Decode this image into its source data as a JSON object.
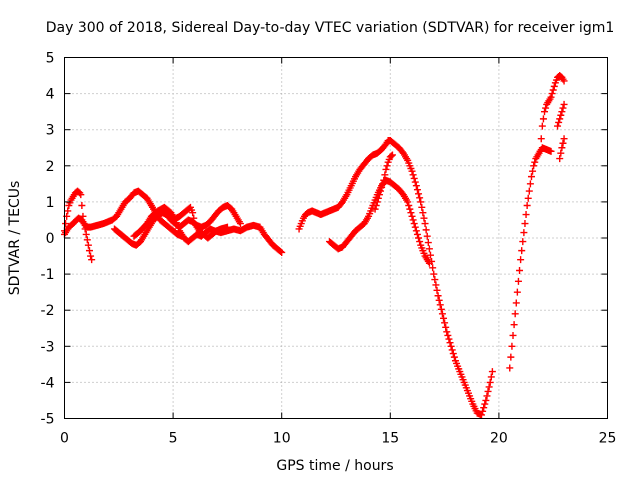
{
  "chart_data": {
    "type": "scatter",
    "title": "Day 300 of 2018, Sidereal Day-to-day VTEC variation (SDTVAR) for receiver igm1",
    "xlabel": "GPS time / hours",
    "ylabel": "SDTVAR / TECUs",
    "xlim": [
      0,
      25
    ],
    "ylim": [
      -5,
      5
    ],
    "xticks": [
      0,
      5,
      10,
      15,
      20,
      25
    ],
    "yticks": [
      -5,
      -4,
      -3,
      -2,
      -1,
      0,
      1,
      2,
      3,
      4,
      5
    ],
    "grid": true,
    "legend": "none",
    "marker": "plus",
    "color": "#ff0000",
    "series": [
      {
        "points": [
          [
            0.0,
            0.2
          ],
          [
            0.1,
            0.6
          ],
          [
            0.2,
            0.9
          ],
          [
            0.3,
            1.05
          ],
          [
            0.4,
            1.15
          ],
          [
            0.5,
            1.25
          ],
          [
            0.6,
            1.3
          ],
          [
            0.7,
            1.25
          ],
          [
            0.75,
            1.2
          ],
          [
            0.8,
            0.9
          ],
          [
            0.85,
            0.6
          ],
          [
            0.9,
            0.4
          ],
          [
            1.0,
            0.1
          ],
          [
            1.1,
            -0.2
          ],
          [
            1.2,
            -0.5
          ],
          [
            1.25,
            -0.6
          ]
        ]
      },
      {
        "points": [
          [
            0.0,
            0.1
          ],
          [
            0.2,
            0.3
          ],
          [
            0.4,
            0.4
          ],
          [
            0.55,
            0.5
          ],
          [
            0.65,
            0.55
          ],
          [
            0.8,
            0.5
          ],
          [
            1.0,
            0.3
          ],
          [
            1.2,
            0.3
          ],
          [
            1.5,
            0.35
          ],
          [
            1.8,
            0.4
          ],
          [
            2.0,
            0.45
          ],
          [
            2.2,
            0.5
          ],
          [
            2.4,
            0.6
          ],
          [
            2.6,
            0.8
          ],
          [
            2.8,
            1.0
          ],
          [
            3.0,
            1.1
          ],
          [
            3.2,
            1.25
          ],
          [
            3.4,
            1.3
          ],
          [
            3.6,
            1.2
          ],
          [
            3.8,
            1.1
          ],
          [
            4.0,
            0.9
          ],
          [
            4.2,
            0.7
          ],
          [
            4.4,
            0.5
          ],
          [
            4.6,
            0.4
          ],
          [
            4.8,
            0.3
          ],
          [
            5.0,
            0.2
          ],
          [
            5.2,
            0.1
          ],
          [
            5.4,
            0.05
          ]
        ]
      },
      {
        "points": [
          [
            2.3,
            0.25
          ],
          [
            2.5,
            0.15
          ],
          [
            2.7,
            0.05
          ],
          [
            2.9,
            -0.05
          ],
          [
            3.1,
            -0.15
          ],
          [
            3.3,
            -0.2
          ],
          [
            3.5,
            -0.1
          ],
          [
            3.7,
            0.1
          ],
          [
            3.9,
            0.3
          ],
          [
            4.1,
            0.5
          ],
          [
            4.3,
            0.6
          ],
          [
            4.5,
            0.7
          ],
          [
            4.7,
            0.65
          ],
          [
            4.9,
            0.5
          ],
          [
            5.1,
            0.4
          ],
          [
            5.3,
            0.3
          ],
          [
            5.5,
            0.4
          ],
          [
            5.7,
            0.5
          ],
          [
            5.9,
            0.45
          ],
          [
            6.1,
            0.35
          ],
          [
            6.3,
            0.3
          ],
          [
            6.5,
            0.35
          ],
          [
            6.7,
            0.45
          ],
          [
            6.9,
            0.6
          ],
          [
            7.1,
            0.75
          ],
          [
            7.3,
            0.85
          ],
          [
            7.5,
            0.9
          ],
          [
            7.7,
            0.8
          ],
          [
            7.9,
            0.6
          ],
          [
            8.1,
            0.4
          ]
        ]
      },
      {
        "points": [
          [
            3.2,
            0.05
          ],
          [
            3.5,
            0.2
          ],
          [
            3.8,
            0.4
          ],
          [
            4.0,
            0.6
          ],
          [
            4.3,
            0.75
          ],
          [
            4.6,
            0.85
          ],
          [
            4.9,
            0.7
          ],
          [
            5.1,
            0.5
          ],
          [
            5.3,
            0.2
          ],
          [
            5.5,
            0.0
          ],
          [
            5.7,
            -0.1
          ],
          [
            5.9,
            0.0
          ],
          [
            6.1,
            0.1
          ],
          [
            6.3,
            0.05
          ],
          [
            6.5,
            0.15
          ],
          [
            6.7,
            0.25
          ],
          [
            6.9,
            0.2
          ],
          [
            7.2,
            0.15
          ],
          [
            7.5,
            0.2
          ],
          [
            7.8,
            0.25
          ],
          [
            8.1,
            0.2
          ],
          [
            8.4,
            0.3
          ],
          [
            8.7,
            0.35
          ],
          [
            9.0,
            0.3
          ],
          [
            9.2,
            0.1
          ],
          [
            9.4,
            -0.05
          ],
          [
            9.6,
            -0.2
          ],
          [
            9.8,
            -0.3
          ],
          [
            10.0,
            -0.4
          ]
        ]
      },
      {
        "points": [
          [
            5.0,
            0.5
          ],
          [
            5.3,
            0.6
          ],
          [
            5.5,
            0.7
          ],
          [
            5.7,
            0.8
          ],
          [
            5.8,
            0.85
          ],
          [
            5.9,
            0.7
          ],
          [
            6.0,
            0.4
          ],
          [
            6.2,
            0.2
          ],
          [
            6.4,
            0.1
          ],
          [
            6.6,
            0.0
          ],
          [
            6.8,
            0.1
          ],
          [
            7.0,
            0.2
          ],
          [
            7.2,
            0.25
          ],
          [
            7.5,
            0.3
          ]
        ]
      },
      {
        "points": [
          [
            10.8,
            0.25
          ],
          [
            10.9,
            0.4
          ],
          [
            11.0,
            0.55
          ],
          [
            11.1,
            0.65
          ],
          [
            11.2,
            0.7
          ],
          [
            11.4,
            0.75
          ],
          [
            11.6,
            0.7
          ],
          [
            11.8,
            0.65
          ],
          [
            12.0,
            0.7
          ],
          [
            12.2,
            0.75
          ],
          [
            12.4,
            0.8
          ],
          [
            12.6,
            0.85
          ],
          [
            12.8,
            1.0
          ],
          [
            13.0,
            1.2
          ],
          [
            13.2,
            1.45
          ],
          [
            13.4,
            1.7
          ],
          [
            13.6,
            1.9
          ],
          [
            13.8,
            2.05
          ],
          [
            14.0,
            2.2
          ],
          [
            14.2,
            2.3
          ],
          [
            14.4,
            2.35
          ],
          [
            14.6,
            2.45
          ],
          [
            14.8,
            2.6
          ],
          [
            14.9,
            2.7
          ],
          [
            15.0,
            2.7
          ],
          [
            15.2,
            2.6
          ],
          [
            15.4,
            2.5
          ],
          [
            15.6,
            2.35
          ],
          [
            15.8,
            2.15
          ],
          [
            16.0,
            1.85
          ],
          [
            16.2,
            1.45
          ],
          [
            16.4,
            1.0
          ],
          [
            16.6,
            0.4
          ],
          [
            16.8,
            -0.3
          ],
          [
            17.0,
            -1.0
          ],
          [
            17.2,
            -1.6
          ],
          [
            17.4,
            -2.1
          ],
          [
            17.6,
            -2.6
          ],
          [
            17.8,
            -3.0
          ],
          [
            18.0,
            -3.4
          ],
          [
            18.2,
            -3.7
          ],
          [
            18.4,
            -4.0
          ],
          [
            18.6,
            -4.3
          ],
          [
            18.8,
            -4.6
          ],
          [
            19.0,
            -4.85
          ],
          [
            19.2,
            -4.9
          ],
          [
            19.4,
            -4.5
          ],
          [
            19.6,
            -4.0
          ],
          [
            19.7,
            -3.7
          ]
        ]
      },
      {
        "points": [
          [
            12.2,
            -0.1
          ],
          [
            12.4,
            -0.2
          ],
          [
            12.6,
            -0.3
          ],
          [
            12.8,
            -0.25
          ],
          [
            13.0,
            -0.1
          ],
          [
            13.2,
            0.05
          ],
          [
            13.4,
            0.2
          ],
          [
            13.6,
            0.3
          ],
          [
            13.8,
            0.4
          ],
          [
            14.0,
            0.6
          ],
          [
            14.2,
            0.9
          ],
          [
            14.4,
            1.2
          ],
          [
            14.6,
            1.45
          ],
          [
            14.8,
            1.6
          ],
          [
            15.0,
            1.55
          ],
          [
            15.2,
            1.45
          ],
          [
            15.4,
            1.35
          ],
          [
            15.6,
            1.2
          ],
          [
            15.8,
            1.0
          ],
          [
            16.0,
            0.6
          ],
          [
            16.2,
            0.2
          ],
          [
            16.4,
            -0.2
          ],
          [
            16.6,
            -0.5
          ],
          [
            16.8,
            -0.7
          ]
        ]
      },
      {
        "points": [
          [
            14.3,
            0.8
          ],
          [
            14.5,
            1.2
          ],
          [
            14.7,
            1.6
          ],
          [
            14.8,
            1.9
          ],
          [
            14.9,
            2.1
          ],
          [
            15.0,
            2.25
          ],
          [
            15.1,
            2.3
          ]
        ]
      },
      {
        "points": [
          [
            20.5,
            -3.6
          ],
          [
            20.6,
            -3.0
          ],
          [
            20.7,
            -2.4
          ],
          [
            20.8,
            -1.8
          ],
          [
            20.9,
            -1.2
          ],
          [
            21.0,
            -0.6
          ],
          [
            21.1,
            -0.1
          ],
          [
            21.2,
            0.4
          ],
          [
            21.3,
            0.9
          ],
          [
            21.4,
            1.3
          ],
          [
            21.5,
            1.7
          ],
          [
            21.6,
            2.0
          ],
          [
            21.7,
            2.2
          ],
          [
            21.8,
            2.3
          ],
          [
            21.9,
            2.4
          ],
          [
            22.0,
            2.5
          ],
          [
            22.2,
            2.45
          ],
          [
            22.4,
            2.4
          ]
        ]
      },
      {
        "points": [
          [
            21.9,
            2.4
          ],
          [
            22.0,
            3.1
          ],
          [
            22.1,
            3.5
          ],
          [
            22.2,
            3.7
          ],
          [
            22.3,
            3.8
          ],
          [
            22.4,
            3.9
          ],
          [
            22.5,
            4.1
          ],
          [
            22.6,
            4.3
          ],
          [
            22.7,
            4.45
          ],
          [
            22.8,
            4.5
          ],
          [
            22.9,
            4.45
          ],
          [
            23.0,
            4.35
          ]
        ]
      },
      {
        "points": [
          [
            22.7,
            3.1
          ],
          [
            22.8,
            3.3
          ],
          [
            22.9,
            3.5
          ],
          [
            23.0,
            3.7
          ]
        ]
      },
      {
        "points": [
          [
            22.8,
            2.2
          ],
          [
            22.9,
            2.5
          ],
          [
            23.0,
            2.75
          ]
        ]
      }
    ]
  }
}
